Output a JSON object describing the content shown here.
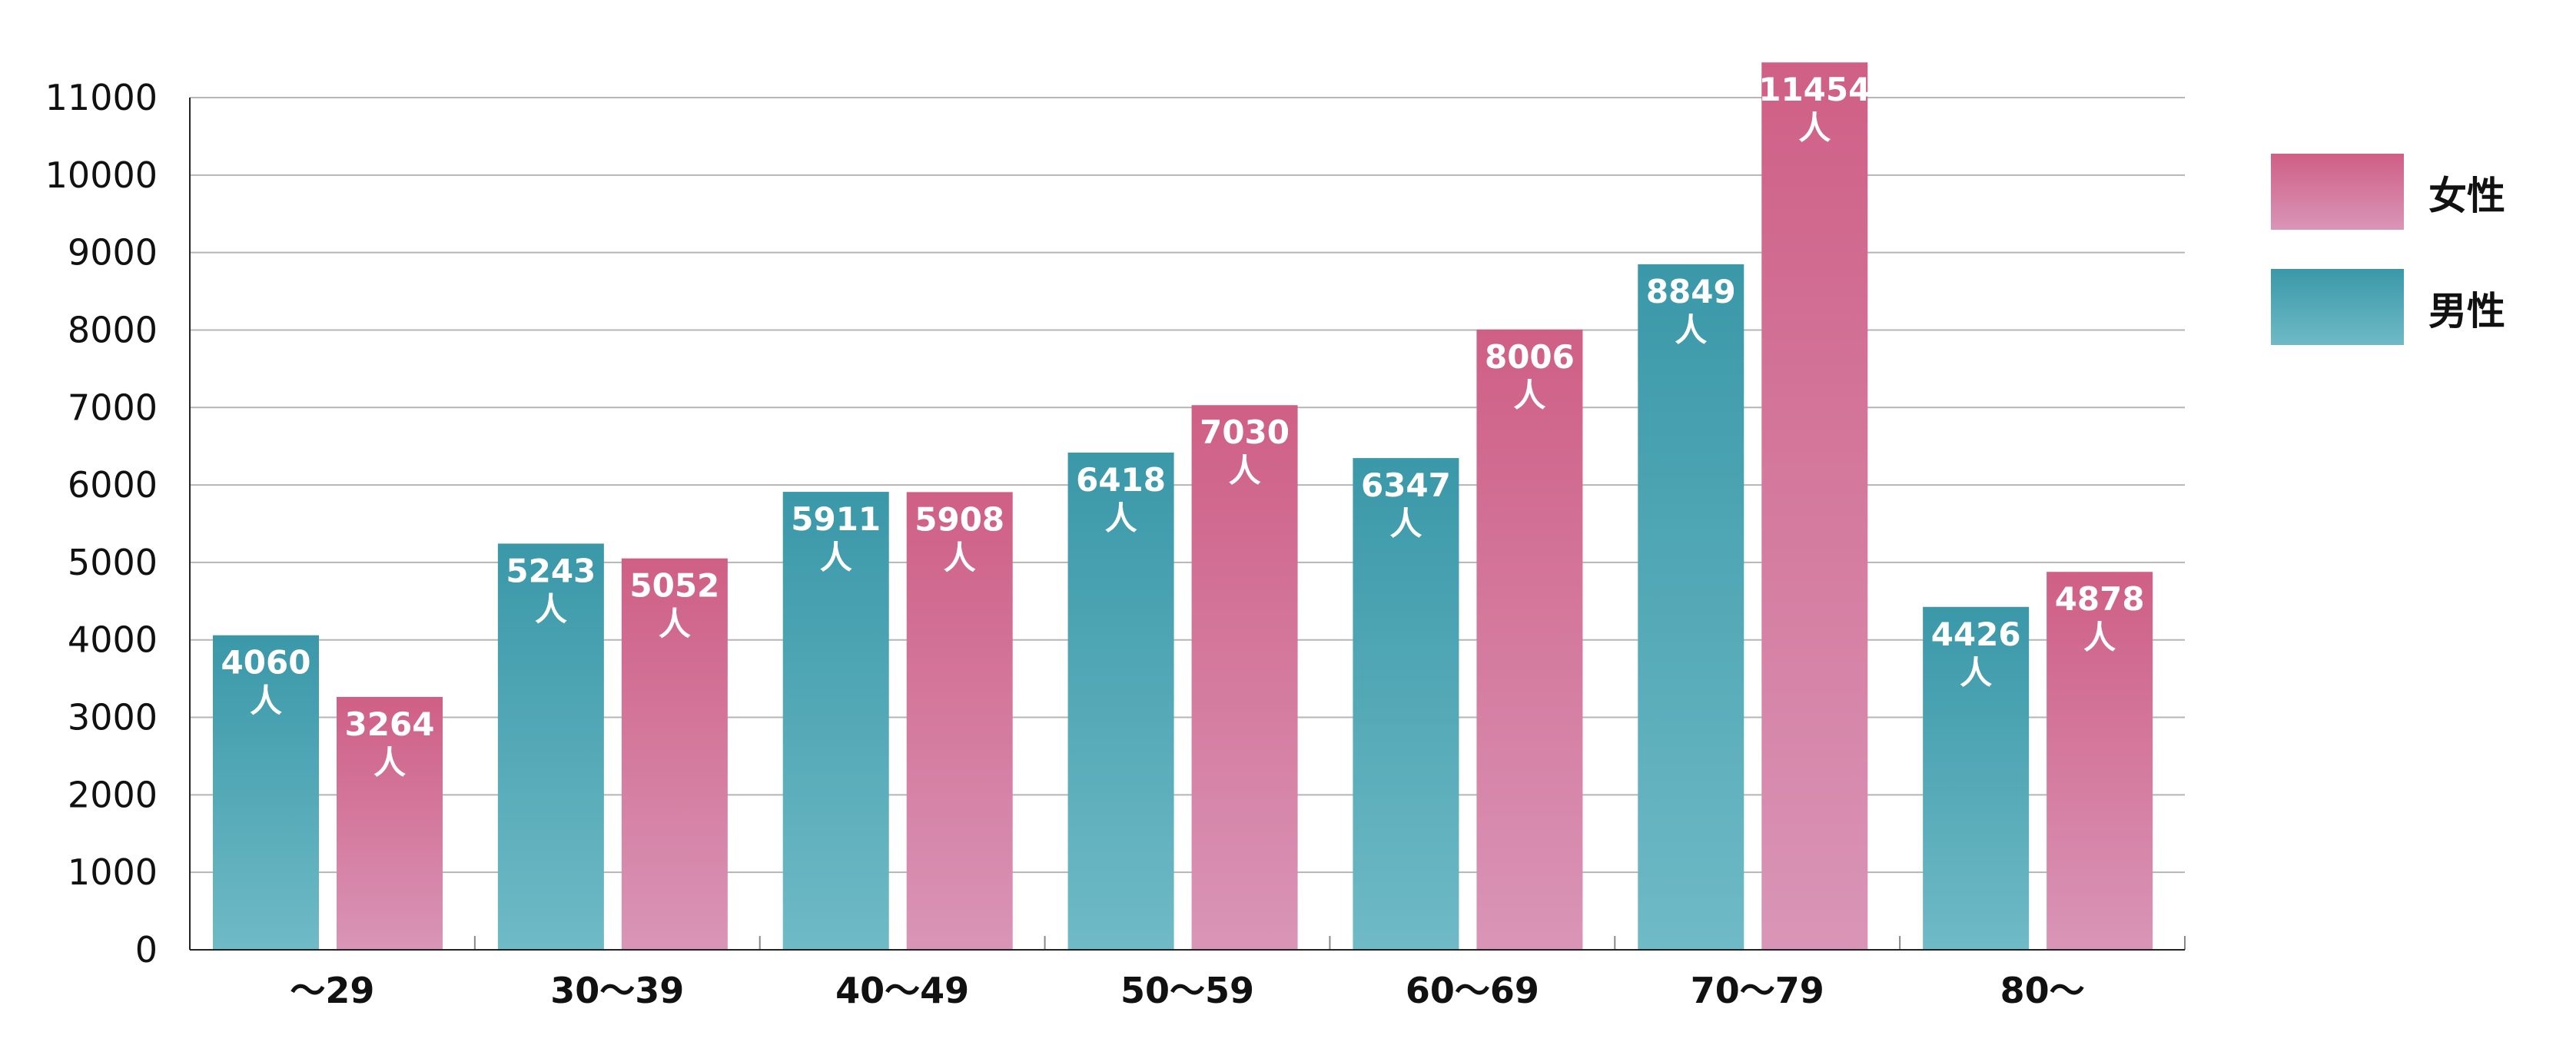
{
  "chart_data": {
    "type": "bar",
    "title": "",
    "xlabel": "",
    "ylabel": "",
    "ylim": [
      0,
      11000
    ],
    "yticks": [
      "0",
      "1000",
      "2000",
      "3000",
      "4000",
      "5000",
      "6000",
      "7000",
      "8000",
      "9000",
      "10000",
      "11000"
    ],
    "grid": true,
    "legend_position": "right",
    "unit": "人",
    "categories": [
      "～29",
      "30～39",
      "40～49",
      "50～59",
      "60～69",
      "70～79",
      "80～"
    ],
    "series": [
      {
        "name": "男性",
        "values": [
          4060,
          5243,
          5911,
          6418,
          6347,
          8849,
          4426
        ],
        "color_top": "#3a98a8",
        "color_bottom": "#6fbac6"
      },
      {
        "name": "女性",
        "values": [
          3264,
          5052,
          5908,
          7030,
          8006,
          11454,
          4878
        ],
        "color_top": "#cf5f85",
        "color_bottom": "#d995b7"
      }
    ],
    "legend": [
      "女性",
      "男性"
    ]
  }
}
